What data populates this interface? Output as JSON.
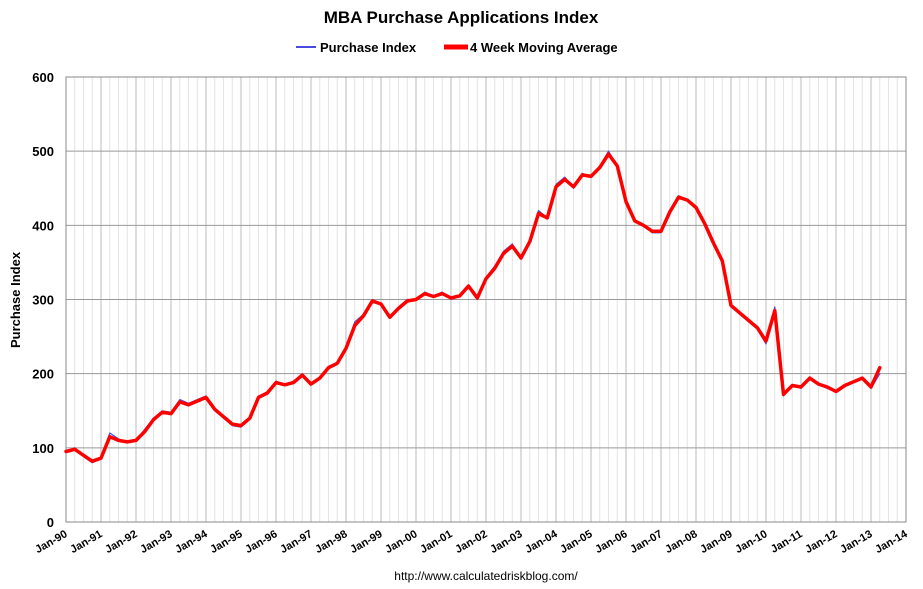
{
  "chart_data": {
    "type": "line",
    "title": "MBA Purchase Applications Index",
    "ylabel": "Purchase Index",
    "xlabel": "",
    "ylim": [
      0,
      600
    ],
    "yticks": [
      "0",
      "100",
      "200",
      "300",
      "400",
      "500",
      "600"
    ],
    "xticks": [
      "Jan-90",
      "Jan-91",
      "Jan-92",
      "Jan-93",
      "Jan-94",
      "Jan-95",
      "Jan-96",
      "Jan-97",
      "Jan-98",
      "Jan-99",
      "Jan-00",
      "Jan-01",
      "Jan-02",
      "Jan-03",
      "Jan-04",
      "Jan-05",
      "Jan-06",
      "Jan-07",
      "Jan-08",
      "Jan-09",
      "Jan-10",
      "Jan-11",
      "Jan-12",
      "Jan-13",
      "Jan-14"
    ],
    "xlim": [
      "Jan-90",
      "Jan-14"
    ],
    "grid": {
      "horizontal": true,
      "vertical": true
    },
    "legend_position": "top-center",
    "series": [
      {
        "name": "Purchase Index",
        "color": "#4a4ae0",
        "x": [
          "1990-01",
          "1990-04",
          "1990-07",
          "1990-10",
          "1991-01",
          "1991-04",
          "1991-07",
          "1991-10",
          "1992-01",
          "1992-04",
          "1992-07",
          "1992-10",
          "1993-01",
          "1993-04",
          "1993-07",
          "1993-10",
          "1994-01",
          "1994-04",
          "1994-07",
          "1994-10",
          "1995-01",
          "1995-04",
          "1995-07",
          "1995-10",
          "1996-01",
          "1996-04",
          "1996-07",
          "1996-10",
          "1997-01",
          "1997-04",
          "1997-07",
          "1997-10",
          "1998-01",
          "1998-04",
          "1998-07",
          "1998-10",
          "1999-01",
          "1999-04",
          "1999-07",
          "1999-10",
          "2000-01",
          "2000-04",
          "2000-07",
          "2000-10",
          "2001-01",
          "2001-04",
          "2001-07",
          "2001-10",
          "2002-01",
          "2002-04",
          "2002-07",
          "2002-10",
          "2003-01",
          "2003-04",
          "2003-07",
          "2003-10",
          "2004-01",
          "2004-04",
          "2004-07",
          "2004-10",
          "2005-01",
          "2005-04",
          "2005-07",
          "2005-10",
          "2006-01",
          "2006-04",
          "2006-07",
          "2006-10",
          "2007-01",
          "2007-04",
          "2007-07",
          "2007-10",
          "2008-01",
          "2008-04",
          "2008-07",
          "2008-10",
          "2009-01",
          "2009-04",
          "2009-07",
          "2009-10",
          "2010-01",
          "2010-04",
          "2010-07",
          "2010-10",
          "2011-01",
          "2011-04",
          "2011-07",
          "2011-10",
          "2012-01",
          "2012-04",
          "2012-07",
          "2012-10",
          "2013-01",
          "2013-04"
        ],
        "values": [
          95,
          100,
          88,
          80,
          85,
          120,
          112,
          108,
          110,
          125,
          140,
          150,
          148,
          165,
          160,
          165,
          170,
          150,
          140,
          130,
          128,
          140,
          170,
          175,
          190,
          185,
          190,
          200,
          185,
          195,
          210,
          215,
          235,
          270,
          280,
          300,
          295,
          275,
          290,
          300,
          300,
          310,
          305,
          310,
          300,
          305,
          320,
          300,
          330,
          345,
          365,
          375,
          355,
          380,
          420,
          410,
          455,
          465,
          450,
          470,
          465,
          480,
          500,
          480,
          430,
          405,
          400,
          390,
          390,
          420,
          440,
          435,
          425,
          400,
          375,
          350,
          290,
          280,
          270,
          260,
          240,
          290,
          170,
          185,
          180,
          195,
          185,
          180,
          175,
          185,
          190,
          195,
          180,
          200
        ]
      },
      {
        "name": "4 Week Moving Average",
        "color": "#ff0000",
        "x": [
          "1990-01",
          "1990-04",
          "1990-07",
          "1990-10",
          "1991-01",
          "1991-04",
          "1991-07",
          "1991-10",
          "1992-01",
          "1992-04",
          "1992-07",
          "1992-10",
          "1993-01",
          "1993-04",
          "1993-07",
          "1993-10",
          "1994-01",
          "1994-04",
          "1994-07",
          "1994-10",
          "1995-01",
          "1995-04",
          "1995-07",
          "1995-10",
          "1996-01",
          "1996-04",
          "1996-07",
          "1996-10",
          "1997-01",
          "1997-04",
          "1997-07",
          "1997-10",
          "1998-01",
          "1998-04",
          "1998-07",
          "1998-10",
          "1999-01",
          "1999-04",
          "1999-07",
          "1999-10",
          "2000-01",
          "2000-04",
          "2000-07",
          "2000-10",
          "2001-01",
          "2001-04",
          "2001-07",
          "2001-10",
          "2002-01",
          "2002-04",
          "2002-07",
          "2002-10",
          "2003-01",
          "2003-04",
          "2003-07",
          "2003-10",
          "2004-01",
          "2004-04",
          "2004-07",
          "2004-10",
          "2005-01",
          "2005-04",
          "2005-07",
          "2005-10",
          "2006-01",
          "2006-04",
          "2006-07",
          "2006-10",
          "2007-01",
          "2007-04",
          "2007-07",
          "2007-10",
          "2008-01",
          "2008-04",
          "2008-07",
          "2008-10",
          "2009-01",
          "2009-04",
          "2009-07",
          "2009-10",
          "2010-01",
          "2010-04",
          "2010-07",
          "2010-10",
          "2011-01",
          "2011-04",
          "2011-07",
          "2011-10",
          "2012-01",
          "2012-04",
          "2012-07",
          "2012-10",
          "2013-01",
          "2013-04"
        ],
        "values": [
          95,
          98,
          90,
          82,
          86,
          115,
          110,
          108,
          110,
          122,
          138,
          148,
          146,
          162,
          158,
          163,
          168,
          152,
          142,
          132,
          130,
          140,
          168,
          174,
          188,
          185,
          188,
          198,
          186,
          194,
          208,
          214,
          234,
          265,
          278,
          298,
          294,
          276,
          288,
          298,
          300,
          308,
          304,
          308,
          302,
          305,
          318,
          302,
          328,
          342,
          362,
          372,
          356,
          378,
          416,
          410,
          452,
          462,
          452,
          468,
          466,
          478,
          496,
          480,
          432,
          406,
          400,
          392,
          392,
          418,
          438,
          434,
          424,
          402,
          376,
          352,
          292,
          282,
          272,
          262,
          244,
          285,
          172,
          184,
          182,
          194,
          186,
          182,
          176,
          184,
          189,
          194,
          182,
          208
        ]
      }
    ],
    "source": "http://www.calculatedriskblog.com/"
  }
}
